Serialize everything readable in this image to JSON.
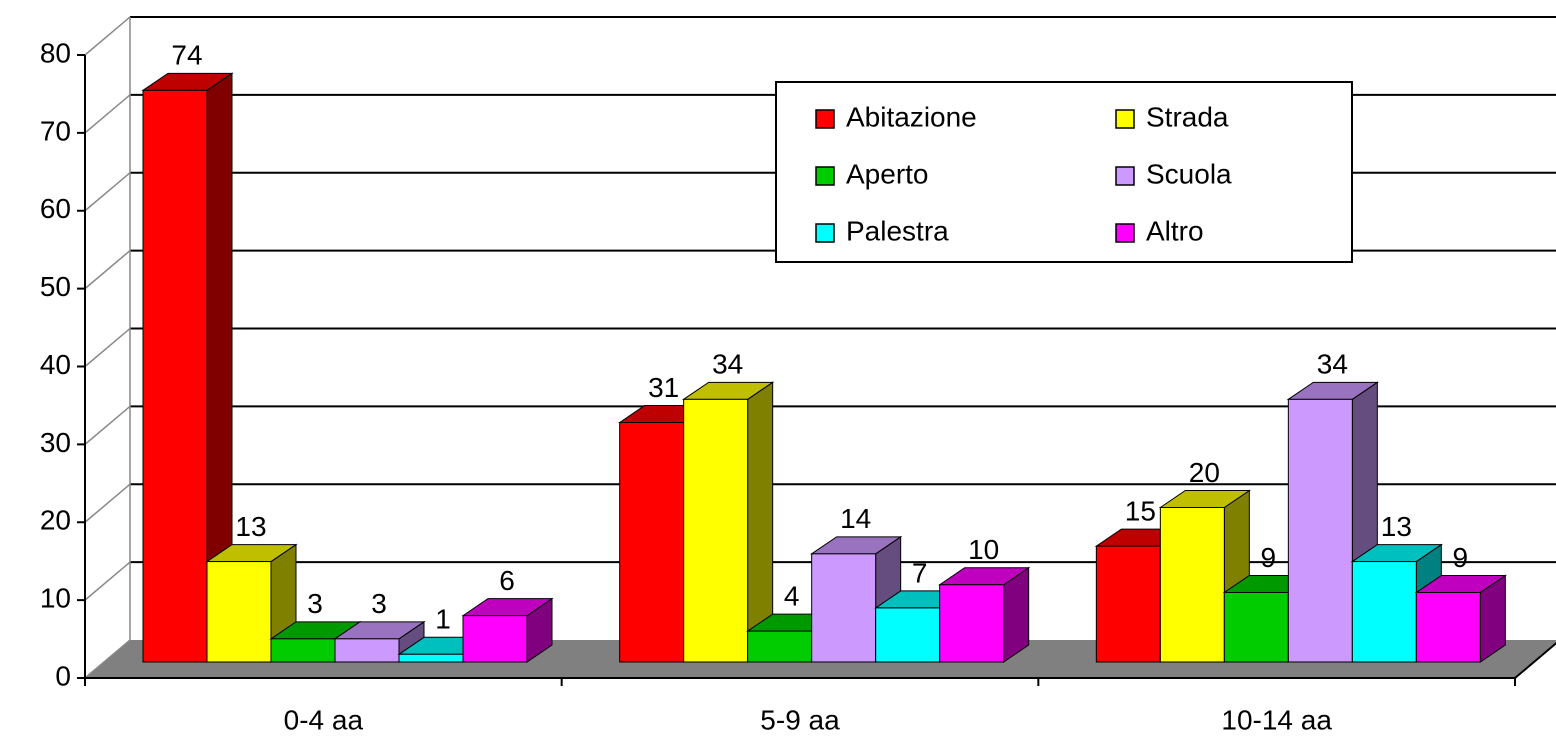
{
  "chart_data": {
    "type": "bar3d",
    "categories": [
      "0-4 aa",
      "5-9 aa",
      "10-14 aa"
    ],
    "series": [
      {
        "name": "Abitazione",
        "color": "#ff0000",
        "values": [
          74,
          31,
          15
        ]
      },
      {
        "name": "Strada",
        "color": "#ffff00",
        "values": [
          13,
          34,
          20
        ]
      },
      {
        "name": "Aperto",
        "color": "#00cc00",
        "values": [
          3,
          4,
          9
        ]
      },
      {
        "name": "Scuola",
        "color": "#cc99ff",
        "values": [
          3,
          14,
          34
        ]
      },
      {
        "name": "Palestra",
        "color": "#00ffff",
        "values": [
          1,
          7,
          13
        ]
      },
      {
        "name": "Altro",
        "color": "#ff00ff",
        "values": [
          6,
          10,
          9
        ]
      }
    ],
    "ylim": [
      0,
      80
    ],
    "yticks": [
      0,
      10,
      20,
      30,
      40,
      50,
      60,
      70,
      80
    ],
    "grid": true
  }
}
